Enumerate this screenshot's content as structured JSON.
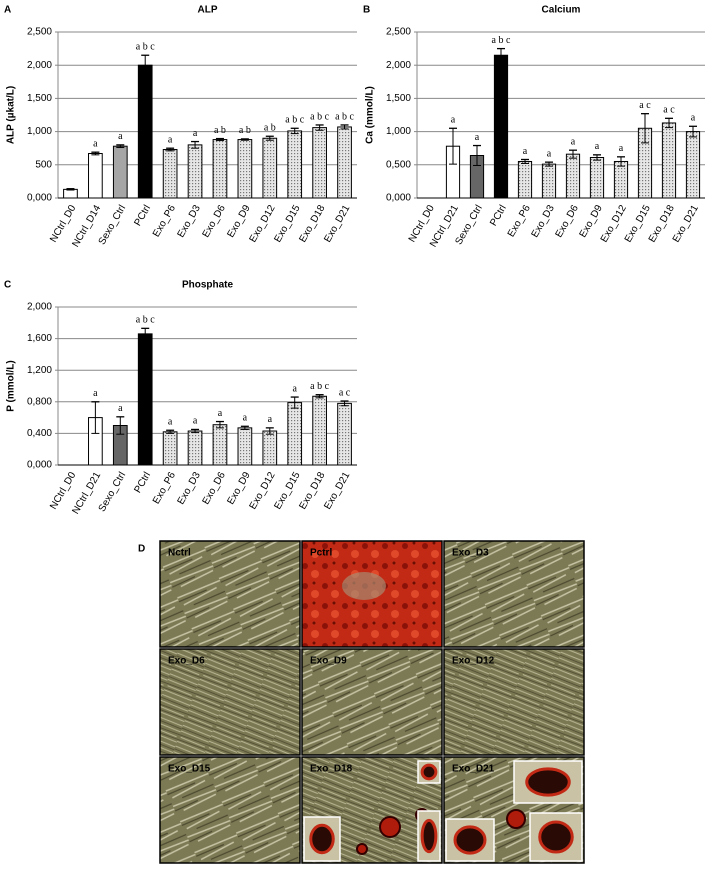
{
  "chart_data": [
    {
      "type": "bar",
      "panel": "A",
      "title": "ALP",
      "ylabel": "ALP (µkat/L)",
      "categories": [
        "NCtrl_D0",
        "NCtrl_D14",
        "Sexo_Ctrl",
        "PCtrl",
        "Exo_P6",
        "Exo_D3",
        "Exo_D6",
        "Exo_D9",
        "Exo_D12",
        "Exo_D15",
        "Exo_D18",
        "Exo_D21"
      ],
      "values": [
        130,
        670,
        780,
        2000,
        730,
        800,
        880,
        880,
        900,
        1010,
        1060,
        1070
      ],
      "errors": [
        10,
        20,
        20,
        150,
        20,
        50,
        15,
        10,
        30,
        40,
        40,
        30
      ],
      "value_labels": [
        null,
        "a",
        "a",
        "a b c",
        "a",
        "a",
        "a b",
        "a b",
        "a b",
        "a b c",
        "a b c",
        "a b c"
      ],
      "colors": [
        "#ffffff",
        "#ffffff",
        "#a6a6a6",
        "#000000",
        "#d4d4d4",
        "#d4d4d4",
        "#d4d4d4",
        "#d4d4d4",
        "#d4d4d4",
        "#d4d4d4",
        "#d4d4d4",
        "#d4d4d4"
      ],
      "ylim": [
        0,
        2500
      ],
      "yticks": [
        {
          "value": 0,
          "label": "0,000"
        },
        500,
        {
          "value": 1000,
          "label": "1,000"
        },
        {
          "value": 1500,
          "label": "1,500"
        },
        {
          "value": 2000,
          "label": "2,000"
        },
        {
          "value": 2500,
          "label": "2,500"
        }
      ],
      "grid": true
    },
    {
      "type": "bar",
      "panel": "B",
      "title": "Calcium",
      "ylabel": "Ca (mmol/L)",
      "categories": [
        "NCtrl_D0",
        "NCtrl_D21",
        "Sexo_Ctrl",
        "PCtrl",
        "Exo_P6",
        "Exo_D3",
        "Exo_D6",
        "Exo_D9",
        "Exo_D12",
        "Exo_D15",
        "Exo_D18",
        "Exo_D21"
      ],
      "values": [
        0,
        0.78,
        0.64,
        2.15,
        0.55,
        0.51,
        0.66,
        0.61,
        0.55,
        1.05,
        1.13,
        1.0
      ],
      "errors": [
        0,
        0.27,
        0.15,
        0.1,
        0.03,
        0.03,
        0.06,
        0.04,
        0.07,
        0.22,
        0.07,
        0.08
      ],
      "value_labels": [
        null,
        "a",
        "a",
        "a b c",
        "a",
        "a",
        "a",
        "a",
        "a",
        "a c",
        "a c",
        "a"
      ],
      "colors": [
        "#ffffff",
        "#ffffff",
        "#666666",
        "#000000",
        "#d4d4d4",
        "#d4d4d4",
        "#d4d4d4",
        "#d4d4d4",
        "#d4d4d4",
        "#d4d4d4",
        "#d4d4d4",
        "#d4d4d4"
      ],
      "ylim": [
        0,
        2.5
      ],
      "yticks": [
        {
          "value": 0,
          "label": "0,000"
        },
        {
          "value": 0.5,
          "label": "0,500"
        },
        {
          "value": 1,
          "label": "1,000"
        },
        {
          "value": 1.5,
          "label": "1,500"
        },
        {
          "value": 2,
          "label": "2,000"
        },
        {
          "value": 2.5,
          "label": "2,500"
        }
      ],
      "grid": true
    },
    {
      "type": "bar",
      "panel": "C",
      "title": "Phosphate",
      "ylabel": "P (mmol/L)",
      "categories": [
        "NCtrl_D0",
        "NCtrl_D21",
        "Sexo_Ctrl",
        "PCtrl",
        "Exo_P6",
        "Exo_D3",
        "Exo_D6",
        "Exo_D9",
        "Exo_D12",
        "Exo_D15",
        "Exo_D18",
        "Exo_D21"
      ],
      "values": [
        0,
        0.6,
        0.5,
        1.66,
        0.42,
        0.43,
        0.51,
        0.47,
        0.43,
        0.79,
        0.87,
        0.78
      ],
      "errors": [
        0,
        0.2,
        0.11,
        0.07,
        0.02,
        0.02,
        0.04,
        0.02,
        0.04,
        0.07,
        0.02,
        0.03
      ],
      "value_labels": [
        null,
        "a",
        "a",
        "a b c",
        "a",
        "a",
        "a",
        "a",
        "a",
        "a",
        "a b c",
        "a c"
      ],
      "colors": [
        "#ffffff",
        "#ffffff",
        "#666666",
        "#000000",
        "#d4d4d4",
        "#d4d4d4",
        "#d4d4d4",
        "#d4d4d4",
        "#d4d4d4",
        "#d4d4d4",
        "#d4d4d4",
        "#d4d4d4"
      ],
      "ylim": [
        0,
        2
      ],
      "yticks": [
        {
          "value": 0,
          "label": "0,000"
        },
        {
          "value": 0.4,
          "label": "0,400"
        },
        {
          "value": 0.8,
          "label": "0,800"
        },
        {
          "value": 1.2,
          "label": "1,200"
        },
        {
          "value": 1.6,
          "label": "1,600"
        },
        {
          "value": 2,
          "label": "2,000"
        }
      ],
      "grid": true
    }
  ],
  "micrographs": {
    "panel": "D",
    "labels": [
      "Nctrl",
      "Pctrl",
      "Exo_D3",
      "Exo_D6",
      "Exo_D9",
      "Exo_D12",
      "Exo_D15",
      "Exo_D18",
      "Exo_D21"
    ]
  }
}
